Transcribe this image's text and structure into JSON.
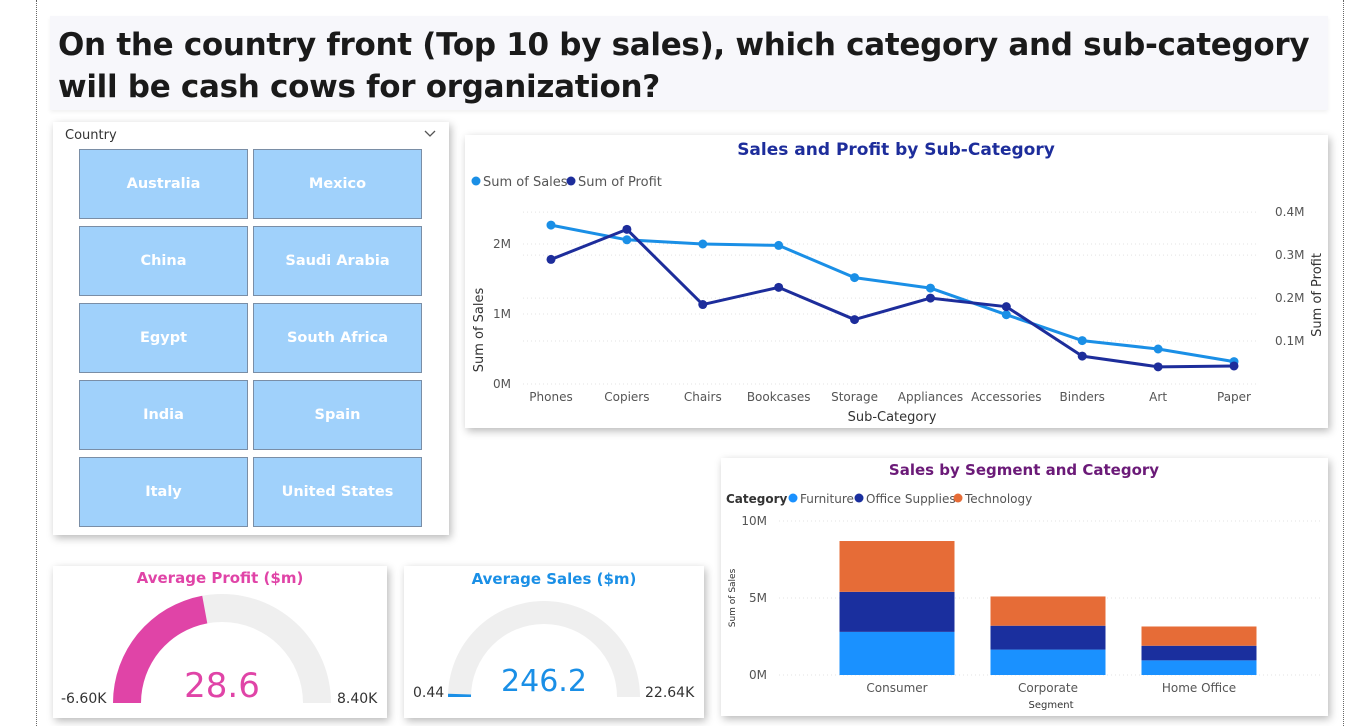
{
  "page_title": "On the country front (Top 10 by sales), which category and sub-category will be cash cows for organization?",
  "slicer": {
    "header": "Country",
    "items": [
      "Australia",
      "Mexico",
      "China",
      "Saudi Arabia",
      "Egypt",
      "South Africa",
      "India",
      "Spain",
      "Italy",
      "United States"
    ]
  },
  "colors": {
    "sales": "#1a8fe6",
    "profit": "#1d2d9b",
    "furniture": "#1a91ff",
    "office_supplies": "#1a2f9e",
    "technology": "#e66c37",
    "avg_profit": "#e044a7",
    "avg_sales": "#1a8fe6",
    "gauge_track": "#efefef",
    "tile": "#a0d1fb"
  },
  "chart_data": [
    {
      "type": "line",
      "title": "Sales and Profit by Sub-Category",
      "xlabel": "Sub-Category",
      "ylabel": "Sum of Sales",
      "y2label": "Sum of Profit",
      "categories": [
        "Phones",
        "Copiers",
        "Chairs",
        "Bookcases",
        "Storage",
        "Appliances",
        "Accessories",
        "Binders",
        "Art",
        "Paper"
      ],
      "series": [
        {
          "name": "Sum of Sales",
          "axis": "left",
          "values": [
            2270000,
            2060000,
            2000000,
            1980000,
            1520000,
            1370000,
            990000,
            620000,
            500000,
            320000
          ]
        },
        {
          "name": "Sum of Profit",
          "axis": "right",
          "values": [
            0.29,
            0.36,
            0.185,
            0.225,
            0.15,
            0.2,
            0.18,
            0.065,
            0.04,
            0.042
          ]
        }
      ],
      "ylim": [
        0,
        2700000
      ],
      "y2lim": [
        0,
        0.44
      ],
      "y_ticks": [
        "0M",
        "1M",
        "2M"
      ],
      "y_tick_values": [
        0,
        1000000,
        2000000
      ],
      "y2_ticks": [
        "0.1M",
        "0.2M",
        "0.3M",
        "0.4M"
      ],
      "y2_tick_values": [
        0.1,
        0.2,
        0.3,
        0.4
      ],
      "legend": "top-left",
      "grid": true
    },
    {
      "type": "bar",
      "stacked": true,
      "title": "Sales by Segment and Category",
      "legend_title": "Category",
      "xlabel": "Segment",
      "ylabel": "Sum of Sales",
      "categories": [
        "Consumer",
        "Corporate",
        "Home Office"
      ],
      "series": [
        {
          "name": "Furniture",
          "values": [
            2800000,
            1650000,
            950000
          ]
        },
        {
          "name": "Office Supplies",
          "values": [
            2600000,
            1550000,
            950000
          ]
        },
        {
          "name": "Technology",
          "values": [
            3300000,
            1900000,
            1250000
          ]
        }
      ],
      "ylim": [
        0,
        10000000
      ],
      "y_ticks": [
        "0M",
        "5M",
        "10M"
      ],
      "y_tick_values": [
        0,
        5000000,
        10000000
      ],
      "legend": "top-left",
      "grid": true
    }
  ],
  "gauges": {
    "avg_profit": {
      "title": "Average Profit ($m)",
      "value": 28.6,
      "value_label": "28.6",
      "min": -6600,
      "max": 8400,
      "min_label": "-6.60K",
      "max_label": "8.40K"
    },
    "avg_sales": {
      "title": "Average Sales ($m)",
      "value": 246.2,
      "value_label": "246.2",
      "min": 0.44,
      "max": 22640,
      "min_label": "0.44",
      "max_label": "22.64K"
    }
  }
}
